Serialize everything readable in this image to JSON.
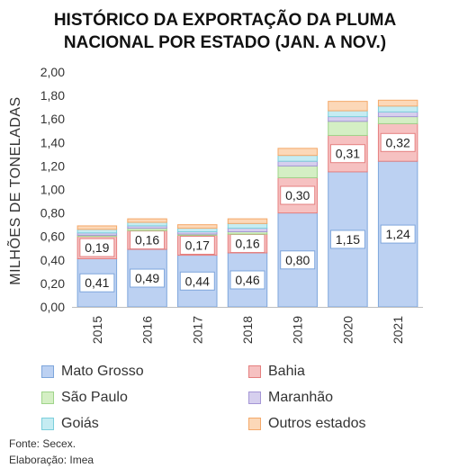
{
  "chart_data": {
    "type": "bar",
    "stacked": true,
    "title_lines": [
      "HISTÓRICO DA EXPORTAÇÃO DA PLUMA",
      "NACIONAL POR ESTADO (JAN. A NOV.)"
    ],
    "ylabel": "MILHÕES DE TONELADAS",
    "ylim": [
      0,
      2.0
    ],
    "ytick_values": [
      0,
      0.2,
      0.4,
      0.6,
      0.8,
      1.0,
      1.2,
      1.4,
      1.6,
      1.8,
      2.0
    ],
    "ytick_labels": [
      "0,00",
      "0,20",
      "0,40",
      "0,60",
      "0,80",
      "1,00",
      "1,20",
      "1,40",
      "1,60",
      "1,80",
      "2,00"
    ],
    "categories": [
      "2015",
      "2016",
      "2017",
      "2018",
      "2019",
      "2020",
      "2021"
    ],
    "series": [
      {
        "name": "Mato Grosso",
        "color": "#bcd1f2",
        "edge": "#7ea6dc",
        "values": [
          0.41,
          0.49,
          0.44,
          0.46,
          0.8,
          1.15,
          1.24
        ],
        "labels": [
          "0,41",
          "0,49",
          "0,44",
          "0,46",
          "0,80",
          "1,15",
          "1,24"
        ]
      },
      {
        "name": "Bahia",
        "color": "#f6c1c1",
        "edge": "#e57f7f",
        "values": [
          0.19,
          0.16,
          0.17,
          0.16,
          0.3,
          0.31,
          0.32
        ],
        "labels": [
          "0,19",
          "0,16",
          "0,17",
          "0,16",
          "0,30",
          "0,31",
          "0,32"
        ]
      },
      {
        "name": "São Paulo",
        "color": "#d4efc4",
        "edge": "#9fd48a",
        "values": [
          0.01,
          0.02,
          0.01,
          0.02,
          0.1,
          0.12,
          0.06
        ],
        "labels": []
      },
      {
        "name": "Maranhão",
        "color": "#d6cfee",
        "edge": "#a596d6",
        "values": [
          0.02,
          0.02,
          0.02,
          0.03,
          0.04,
          0.04,
          0.04
        ],
        "labels": []
      },
      {
        "name": "Goiás",
        "color": "#c5ecf2",
        "edge": "#7ccfdc",
        "values": [
          0.03,
          0.03,
          0.03,
          0.04,
          0.05,
          0.05,
          0.05
        ],
        "labels": []
      },
      {
        "name": "Outros estados",
        "color": "#fcd8b8",
        "edge": "#f4a96a",
        "values": [
          0.03,
          0.03,
          0.03,
          0.04,
          0.06,
          0.08,
          0.05
        ],
        "labels": []
      }
    ],
    "grid": false,
    "legend_position": "bottom"
  },
  "notes": {
    "source": "Fonte: Secex.",
    "author": "Elaboração: Imea"
  }
}
